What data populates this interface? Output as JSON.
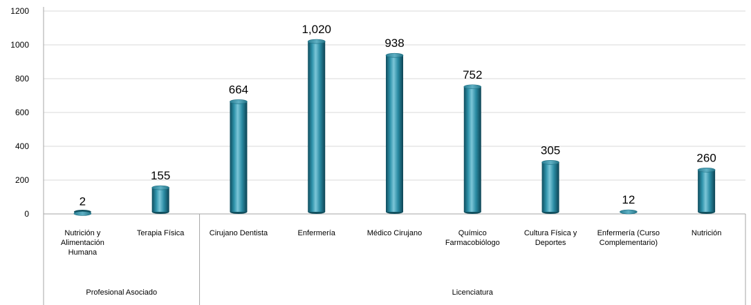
{
  "chart_data": {
    "type": "bar",
    "title": "",
    "xlabel": "",
    "ylabel": "",
    "ylim": [
      0,
      1200
    ],
    "yticks": [
      0,
      200,
      400,
      600,
      800,
      1000,
      1200
    ],
    "grid": "horizontal",
    "legend": "none",
    "bar_color": "#2a8ba3",
    "categories": [
      "Nutrición y Alimentación Humana",
      "Terapia Física",
      "Cirujano Dentista",
      "Enfermería",
      "Médico Cirujano",
      "Químico Farmacobiólogo",
      "Cultura Física y Deportes",
      "Enfermería (Curso Complementario)",
      "Nutrición"
    ],
    "category_label_lines": [
      [
        "Nutrición y",
        "Alimentación",
        "Humana"
      ],
      [
        "Terapia Física"
      ],
      [
        "Cirujano Dentista"
      ],
      [
        "Enfermería"
      ],
      [
        "Médico Cirujano"
      ],
      [
        "Químico",
        "Farmacobiólogo"
      ],
      [
        "Cultura Física y",
        "Deportes"
      ],
      [
        "Enfermería (Curso",
        "Complementario)"
      ],
      [
        "Nutrición"
      ]
    ],
    "values": [
      2,
      155,
      664,
      1020,
      938,
      752,
      305,
      12,
      260
    ],
    "value_labels": [
      "2",
      "155",
      "664",
      "1,020",
      "938",
      "752",
      "305",
      "12",
      "260"
    ],
    "groups": [
      {
        "name": "Profesional Asociado",
        "categories": 2
      },
      {
        "name": "Licenciatura",
        "categories": 7
      }
    ]
  }
}
